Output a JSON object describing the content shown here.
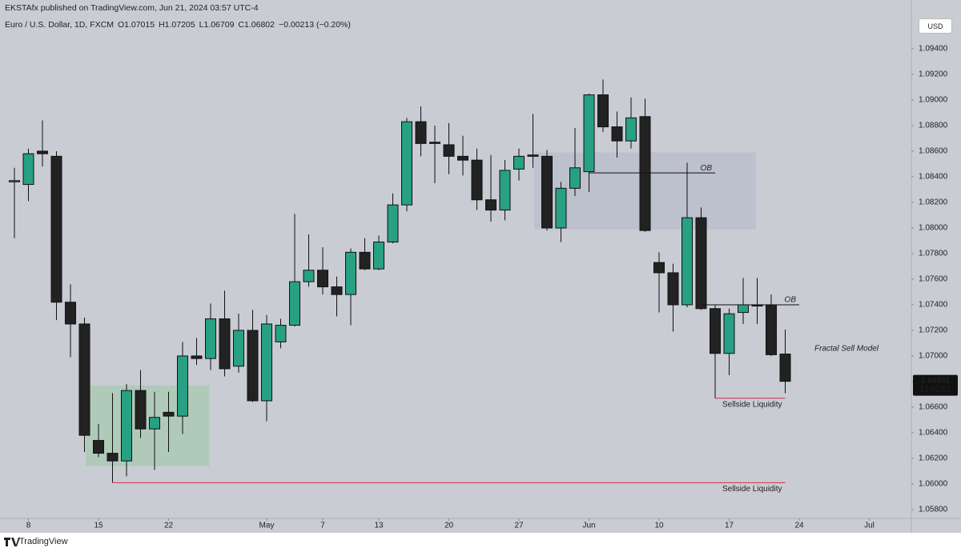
{
  "header": {
    "published": "EKSTAfx published on TradingView.com, Jun 21, 2024 03:57 UTC-4",
    "brand": "TradingView",
    "currency": "USD",
    "countdown": "13:02:01"
  },
  "chart_data": {
    "type": "candlestick",
    "symbol": "Euro / U.S. Dollar, 1D, FXCM",
    "ohlc_labels": [
      "O1.07015",
      "H1.07205",
      "L1.06709",
      "C1.06802",
      "−0.00213 (−0.20%)"
    ],
    "categories": [
      "Apr 5",
      "Apr 8",
      "Apr 9",
      "Apr 10",
      "Apr 11",
      "Apr 12",
      "Apr 15",
      "Apr 16",
      "Apr 17",
      "Apr 18",
      "Apr 19",
      "Apr 22",
      "Apr 23",
      "Apr 24",
      "Apr 25",
      "Apr 26",
      "Apr 29",
      "Apr 30",
      "May 1",
      "May 2",
      "May 3",
      "May 6",
      "May 7",
      "May 8",
      "May 9",
      "May 10",
      "May 13",
      "May 14",
      "May 15",
      "May 16",
      "May 17",
      "May 20",
      "May 21",
      "May 22",
      "May 23",
      "May 24",
      "May 27",
      "May 28",
      "May 29",
      "May 30",
      "May 31",
      "Jun 3",
      "Jun 4",
      "Jun 5",
      "Jun 6",
      "Jun 7",
      "Jun 10",
      "Jun 11",
      "Jun 12",
      "Jun 13",
      "Jun 14",
      "Jun 17",
      "Jun 18",
      "Jun 19",
      "Jun 20",
      "Jun 21"
    ],
    "open": [
      1.0836,
      1.0834,
      1.086,
      1.0856,
      1.0742,
      1.0725,
      1.0634,
      1.0624,
      1.0618,
      1.0673,
      1.0643,
      1.0656,
      1.0653,
      1.07,
      1.0698,
      1.0729,
      1.0692,
      1.072,
      1.0665,
      1.0711,
      1.0724,
      1.0758,
      1.0767,
      1.0754,
      1.0748,
      1.0781,
      1.0768,
      1.0789,
      1.0818,
      1.0883,
      1.0867,
      1.0865,
      1.0856,
      1.0853,
      1.0822,
      1.0814,
      1.0846,
      1.0857,
      1.0856,
      1.08,
      1.0831,
      1.0844,
      1.0904,
      1.0879,
      1.0868,
      1.0887,
      1.0773,
      1.0765,
      1.074,
      1.0808,
      1.0737,
      1.0702,
      1.0734,
      1.074,
      1.074,
      1.07015
    ],
    "high": [
      1.0847,
      1.0862,
      1.0884,
      1.086,
      1.0756,
      1.073,
      1.0647,
      1.0671,
      1.0678,
      1.0689,
      1.0672,
      1.0672,
      1.0711,
      1.0714,
      1.0741,
      1.0751,
      1.0733,
      1.0736,
      1.0732,
      1.0729,
      1.0811,
      1.0795,
      1.0785,
      1.0762,
      1.0784,
      1.0792,
      1.0794,
      1.0827,
      1.0886,
      1.0895,
      1.088,
      1.0882,
      1.0872,
      1.0862,
      1.0857,
      1.0853,
      1.0862,
      1.0889,
      1.0861,
      1.0836,
      1.0878,
      1.0905,
      1.0916,
      1.0891,
      1.0902,
      1.0901,
      1.0781,
      1.0772,
      1.0851,
      1.0816,
      1.074,
      1.0737,
      1.0761,
      1.0761,
      1.0748,
      1.07205
    ],
    "low": [
      1.0792,
      1.0821,
      1.0848,
      1.0728,
      1.0699,
      1.0625,
      1.0621,
      1.0601,
      1.0606,
      1.0636,
      1.0611,
      1.0625,
      1.0639,
      1.0693,
      1.0689,
      1.0684,
      1.0687,
      1.0664,
      1.0649,
      1.0706,
      1.0723,
      1.0754,
      1.0748,
      1.0731,
      1.0724,
      1.0767,
      1.0767,
      1.0788,
      1.0813,
      1.0856,
      1.0835,
      1.0842,
      1.0841,
      1.0814,
      1.0805,
      1.0806,
      1.0837,
      1.0847,
      1.0798,
      1.0789,
      1.0825,
      1.0828,
      1.0875,
      1.0855,
      1.0862,
      1.0797,
      1.0734,
      1.0719,
      1.0738,
      1.0736,
      1.0667,
      1.0685,
      1.0725,
      1.0725,
      1.07,
      1.06709
    ],
    "close": [
      1.0837,
      1.0858,
      1.0858,
      1.0742,
      1.0725,
      1.0638,
      1.0624,
      1.0618,
      1.0673,
      1.0643,
      1.0652,
      1.0653,
      1.07,
      1.0698,
      1.0729,
      1.069,
      1.072,
      1.0665,
      1.0725,
      1.0724,
      1.0758,
      1.0767,
      1.0754,
      1.0748,
      1.0781,
      1.0768,
      1.0789,
      1.0818,
      1.0883,
      1.0866,
      1.0866,
      1.0856,
      1.0853,
      1.0822,
      1.0814,
      1.0845,
      1.0856,
      1.0856,
      1.08,
      1.0831,
      1.0847,
      1.0904,
      1.0879,
      1.0868,
      1.0886,
      1.0798,
      1.0765,
      1.074,
      1.0808,
      1.0737,
      1.0702,
      1.0733,
      1.074,
      1.0739,
      1.0701,
      1.06802
    ],
    "up_color": "#27a083",
    "down_color": "#222222",
    "ylim": [
      1.05731,
      1.09656
    ],
    "yticks": [
      {
        "value": 1.094,
        "label": "1.09400"
      },
      {
        "value": 1.092,
        "label": "1.09200"
      },
      {
        "value": 1.09,
        "label": "1.09000"
      },
      {
        "value": 1.088,
        "label": "1.08800"
      },
      {
        "value": 1.086,
        "label": "1.08600"
      },
      {
        "value": 1.084,
        "label": "1.08400"
      },
      {
        "value": 1.082,
        "label": "1.08200"
      },
      {
        "value": 1.08,
        "label": "1.08000"
      },
      {
        "value": 1.078,
        "label": "1.07800"
      },
      {
        "value": 1.076,
        "label": "1.07600"
      },
      {
        "value": 1.074,
        "label": "1.07400"
      },
      {
        "value": 1.072,
        "label": "1.07200"
      },
      {
        "value": 1.07,
        "label": "1.07000"
      },
      {
        "value": 1.068,
        "label": "1.06800"
      },
      {
        "value": 1.066,
        "label": "1.06600"
      },
      {
        "value": 1.064,
        "label": "1.06400"
      },
      {
        "value": 1.062,
        "label": "1.06200"
      },
      {
        "value": 1.06,
        "label": "1.06000"
      },
      {
        "value": 1.058,
        "label": "1.05800"
      }
    ],
    "xticks": [
      {
        "value": "Apr 8",
        "label": "8"
      },
      {
        "value": "Apr 15",
        "label": "15"
      },
      {
        "value": "Apr 22",
        "label": "22"
      },
      {
        "value": "May 1",
        "label": "May"
      },
      {
        "value": "May 7",
        "label": "7"
      },
      {
        "value": "May 13",
        "label": "13"
      },
      {
        "value": "May 20",
        "label": "20"
      },
      {
        "value": "May 27",
        "label": "27"
      },
      {
        "value": "Jun 3",
        "label": "Jun"
      },
      {
        "value": "Jun 10",
        "label": "10"
      },
      {
        "value": "Jun 17",
        "label": "17"
      },
      {
        "value": "Jun 24",
        "label": "24"
      },
      {
        "value": "Jul 1",
        "label": "Jul"
      }
    ],
    "grid": false,
    "zones": [
      {
        "from": "Apr 15",
        "to": "Apr 24",
        "top": 1.0677,
        "bottom": 1.0614,
        "color": "rgba(140,200,150,0.40)"
      },
      {
        "from": "May 29",
        "to": "Jun 18",
        "top": 1.0859,
        "bottom": 1.0799,
        "color": "rgba(175,178,200,0.45)"
      }
    ],
    "levels": [
      {
        "label": "OB",
        "price": 1.0843,
        "from": "Jun 3",
        "to": "Jun 14",
        "color": "#111111",
        "label_color": "#d8274f"
      },
      {
        "label": "OB",
        "price": 1.074,
        "from": "Jun 13",
        "to": "Jun 24",
        "color": "#111111",
        "label_color": "#d8274f"
      },
      {
        "label": "Sellside Liquidity",
        "price": 1.0667,
        "from": "Jun 14",
        "to": "Jun 21",
        "color": "#d8274f",
        "label_color": "#d8274f"
      },
      {
        "label": "Sellside Liquidity",
        "price": 1.0601,
        "from": "Apr 16",
        "to": "Jun 21",
        "color": "#d8274f",
        "label_color": "#d8274f"
      }
    ],
    "note": "Fractal Sell Model"
  }
}
